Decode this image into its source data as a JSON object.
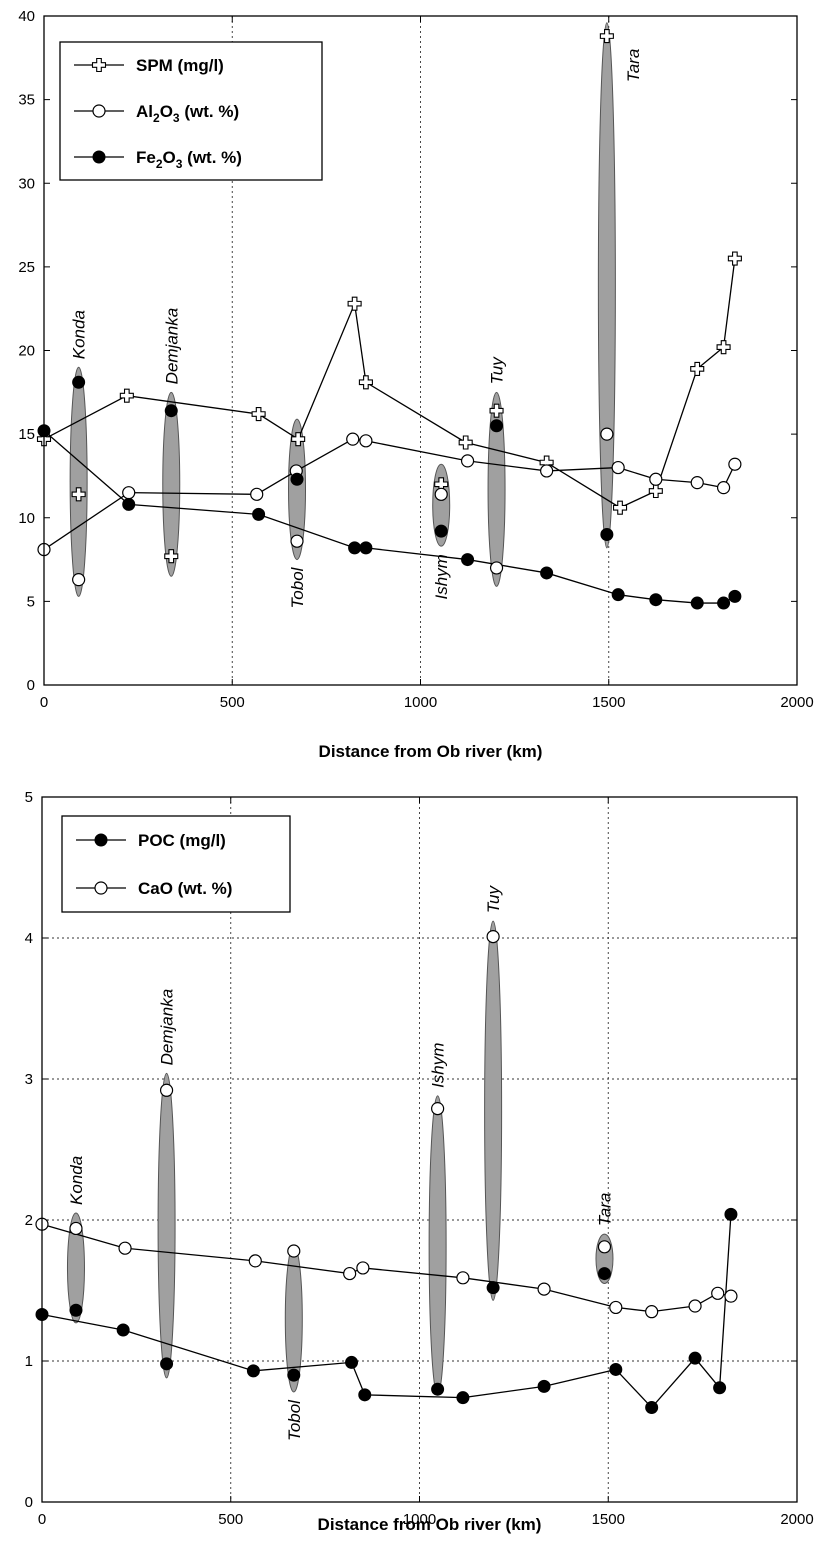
{
  "chart_data": [
    {
      "type": "line",
      "xlabel": "Distance from Ob river (km)",
      "xlim": [
        0,
        2000
      ],
      "ylim": [
        0,
        40
      ],
      "x_ticks": [
        "0",
        "500",
        "1000",
        "1500",
        "2000"
      ],
      "y_ticks": [
        "0",
        "5",
        "10",
        "15",
        "20",
        "25",
        "30",
        "35",
        "40"
      ],
      "grid": "dotted at x = 500, 1000, 1500",
      "legend_position": "top-left",
      "series": [
        {
          "name": "SPM (mg/l)",
          "marker": "cross",
          "x": [
            0,
            220,
            570,
            675,
            825,
            855,
            1120,
            1335,
            1530,
            1625,
            1735,
            1805,
            1835
          ],
          "y": [
            14.7,
            17.3,
            16.2,
            14.7,
            22.8,
            18.1,
            14.5,
            13.3,
            10.6,
            11.6,
            18.9,
            20.2,
            25.5
          ]
        },
        {
          "name": "Al2O3 (wt. %)",
          "legend_label": {
            "a": "Al",
            "sub": "2",
            "b": "O",
            "sub2": "3",
            "c": " (wt. %)"
          },
          "marker": "open",
          "x": [
            0,
            225,
            565,
            670,
            820,
            855,
            1125,
            1335,
            1525,
            1625,
            1735,
            1805,
            1835
          ],
          "y": [
            8.1,
            11.5,
            11.4,
            12.8,
            14.7,
            14.6,
            13.4,
            12.8,
            13.0,
            12.3,
            12.1,
            11.8,
            13.2
          ]
        },
        {
          "name": "Fe2O3 (wt. %)",
          "legend_label": {
            "a": "Fe",
            "sub": "2",
            "b": "O",
            "sub2": "3",
            "c": " (wt. %)"
          },
          "marker": "filled",
          "x": [
            0,
            225,
            570,
            825,
            855,
            1125,
            1335,
            1525,
            1625,
            1735,
            1805,
            1835
          ],
          "y": [
            15.2,
            10.8,
            10.2,
            8.2,
            8.2,
            7.5,
            6.7,
            5.4,
            5.1,
            4.9,
            4.9,
            5.3
          ]
        }
      ],
      "tributaries": [
        {
          "label": "Konda",
          "x": 92,
          "y_low": 5.3,
          "y_high": 19.0,
          "label_pos": "top",
          "points": [
            {
              "marker": "filled",
              "y": 18.1
            },
            {
              "marker": "cross",
              "y": 11.4
            },
            {
              "marker": "open",
              "y": 6.3
            }
          ]
        },
        {
          "label": "Demjanka",
          "x": 338,
          "y_low": 6.5,
          "y_high": 17.5,
          "label_pos": "top",
          "points": [
            {
              "marker": "filled",
              "y": 16.4
            },
            {
              "marker": "cross",
              "y": 7.7
            }
          ]
        },
        {
          "label": "Tobol",
          "x": 672,
          "y_low": 7.5,
          "y_high": 15.9,
          "label_pos": "bottom",
          "points": [
            {
              "marker": "filled",
              "y": 12.3
            },
            {
              "marker": "open",
              "y": 8.6
            }
          ]
        },
        {
          "label": "Ishym",
          "x": 1055,
          "y_low": 8.3,
          "y_high": 13.2,
          "label_pos": "bottom",
          "points": [
            {
              "marker": "cross",
              "y": 12.0
            },
            {
              "marker": "open",
              "y": 11.4
            },
            {
              "marker": "filled",
              "y": 9.2
            }
          ]
        },
        {
          "label": "Tuy",
          "x": 1202,
          "y_low": 5.9,
          "y_high": 17.5,
          "label_pos": "top",
          "points": [
            {
              "marker": "cross",
              "y": 16.4
            },
            {
              "marker": "filled",
              "y": 15.5
            },
            {
              "marker": "open",
              "y": 7.0
            }
          ]
        },
        {
          "label": "Tara",
          "x": 1495,
          "y_low": 8.2,
          "y_high": 39.6,
          "label_pos": "inside-top",
          "points": [
            {
              "marker": "cross",
              "y": 38.8
            },
            {
              "marker": "open",
              "y": 15.0
            },
            {
              "marker": "filled",
              "y": 9.0
            }
          ]
        }
      ]
    },
    {
      "type": "line",
      "xlabel": "Distance from Ob river (km)",
      "xlim": [
        0,
        2000
      ],
      "ylim": [
        0,
        5
      ],
      "x_ticks": [
        "0",
        "500",
        "1000",
        "1500",
        "2000"
      ],
      "y_ticks": [
        "0",
        "1",
        "2",
        "3",
        "4",
        "5"
      ],
      "grid": "dotted at x = 500, 1000, 1500 and y = 1, 2, 3, 4",
      "legend_position": "top-left",
      "series": [
        {
          "name": "POC (mg/l)",
          "marker": "filled",
          "x": [
            0,
            215,
            560,
            820,
            855,
            1115,
            1330,
            1520,
            1615,
            1730,
            1795,
            1825
          ],
          "y": [
            1.33,
            1.22,
            0.93,
            0.99,
            0.76,
            0.74,
            0.82,
            0.94,
            0.67,
            1.02,
            0.81,
            2.04
          ]
        },
        {
          "name": "CaO (wt. %)",
          "marker": "open",
          "x": [
            0,
            220,
            565,
            815,
            850,
            1115,
            1330,
            1520,
            1615,
            1730,
            1790,
            1825
          ],
          "y": [
            1.97,
            1.8,
            1.71,
            1.62,
            1.66,
            1.59,
            1.51,
            1.38,
            1.35,
            1.39,
            1.48,
            1.46
          ]
        }
      ],
      "tributaries": [
        {
          "label": "Konda",
          "x": 90,
          "y_low": 1.27,
          "y_high": 2.05,
          "label_pos": "top",
          "points": [
            {
              "marker": "open",
              "y": 1.94
            },
            {
              "marker": "filled",
              "y": 1.36
            }
          ]
        },
        {
          "label": "Demjanka",
          "x": 330,
          "y_low": 0.88,
          "y_high": 3.04,
          "label_pos": "top",
          "points": [
            {
              "marker": "open",
              "y": 2.92
            },
            {
              "marker": "filled",
              "y": 0.98
            }
          ]
        },
        {
          "label": "Tobol",
          "x": 667,
          "y_low": 0.78,
          "y_high": 1.82,
          "label_pos": "bottom",
          "points": [
            {
              "marker": "open",
              "y": 1.78
            },
            {
              "marker": "filled",
              "y": 0.9
            }
          ]
        },
        {
          "label": "Ishym",
          "x": 1048,
          "y_low": 0.76,
          "y_high": 2.88,
          "label_pos": "top",
          "points": [
            {
              "marker": "open",
              "y": 2.79
            },
            {
              "marker": "filled",
              "y": 0.8
            }
          ]
        },
        {
          "label": "Tuy",
          "x": 1195,
          "y_low": 1.43,
          "y_high": 4.12,
          "label_pos": "top",
          "points": [
            {
              "marker": "open",
              "y": 4.01
            },
            {
              "marker": "filled",
              "y": 1.52
            }
          ]
        },
        {
          "label": "Tara",
          "x": 1490,
          "y_low": 1.55,
          "y_high": 1.9,
          "label_pos": "top",
          "points": [
            {
              "marker": "open",
              "y": 1.81
            },
            {
              "marker": "filled",
              "y": 1.62
            }
          ]
        }
      ]
    }
  ]
}
